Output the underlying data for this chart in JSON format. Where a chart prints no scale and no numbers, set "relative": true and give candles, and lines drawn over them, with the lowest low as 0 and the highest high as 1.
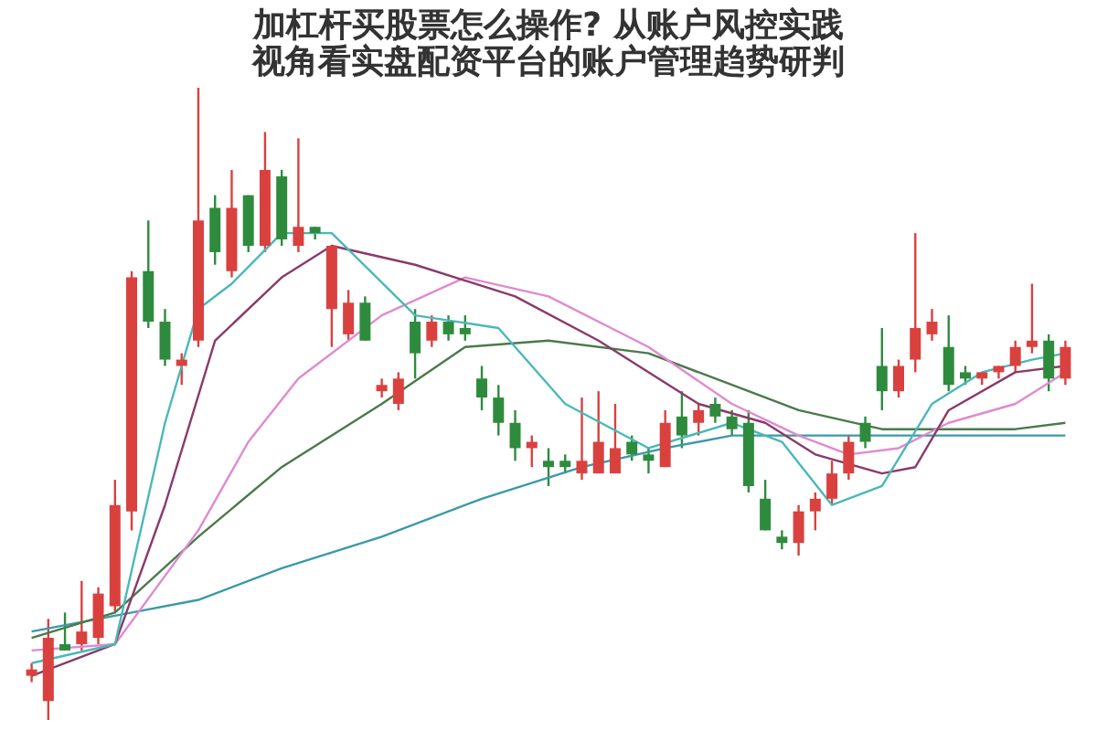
{
  "chart_data": {
    "type": "candlestick",
    "title": "加杠杆买股票怎么操作? 从账户风控实践视角看实盘配资平台的账户管理趋势研判",
    "relative": true,
    "marker": "none",
    "line_style": "solid",
    "categories": [
      null,
      null,
      null,
      null,
      null,
      null,
      null,
      null,
      null,
      null,
      null,
      null,
      null,
      null,
      null,
      null,
      null,
      null,
      null,
      null,
      null,
      null,
      null,
      null,
      null,
      null,
      null,
      null,
      null,
      null,
      null,
      null,
      null,
      null,
      null,
      null,
      null,
      null,
      null,
      null,
      null,
      null,
      null,
      null,
      null,
      null,
      null,
      null,
      null,
      null,
      null,
      null,
      null,
      null,
      null,
      null,
      null,
      null,
      null,
      null,
      null,
      null,
      null
    ],
    "ohlc": [
      [
        0.07,
        0.09,
        0.06,
        0.08
      ],
      [
        0.03,
        0.16,
        0.0,
        0.13
      ],
      [
        0.12,
        0.17,
        0.11,
        0.11
      ],
      [
        0.12,
        0.22,
        0.11,
        0.14
      ],
      [
        0.13,
        0.21,
        0.12,
        0.2
      ],
      [
        0.18,
        0.38,
        0.17,
        0.34
      ],
      [
        0.33,
        0.71,
        0.3,
        0.7
      ],
      [
        0.71,
        0.79,
        0.62,
        0.63
      ],
      [
        0.63,
        0.65,
        0.56,
        0.57
      ],
      [
        0.56,
        0.58,
        0.53,
        0.57
      ],
      [
        0.6,
        1.0,
        0.59,
        0.79
      ],
      [
        0.81,
        0.83,
        0.72,
        0.74
      ],
      [
        0.71,
        0.87,
        0.7,
        0.81
      ],
      [
        0.83,
        0.83,
        0.74,
        0.75
      ],
      [
        0.75,
        0.93,
        0.74,
        0.87
      ],
      [
        0.86,
        0.87,
        0.75,
        0.76
      ],
      [
        0.75,
        0.92,
        0.74,
        0.78
      ],
      [
        0.78,
        0.78,
        0.76,
        0.77
      ],
      [
        0.65,
        0.75,
        0.59,
        0.75
      ],
      [
        0.61,
        0.68,
        0.6,
        0.66
      ],
      [
        0.66,
        0.67,
        0.6,
        0.6
      ],
      [
        0.52,
        0.54,
        0.51,
        0.53
      ],
      [
        0.5,
        0.55,
        0.49,
        0.54
      ],
      [
        0.63,
        0.65,
        0.54,
        0.58
      ],
      [
        0.6,
        0.64,
        0.59,
        0.63
      ],
      [
        0.63,
        0.64,
        0.6,
        0.61
      ],
      [
        0.62,
        0.64,
        0.6,
        0.61
      ],
      [
        0.54,
        0.56,
        0.49,
        0.51
      ],
      [
        0.51,
        0.53,
        0.45,
        0.47
      ],
      [
        0.47,
        0.49,
        0.41,
        0.43
      ],
      [
        0.43,
        0.45,
        0.4,
        0.44
      ],
      [
        0.41,
        0.43,
        0.37,
        0.4
      ],
      [
        0.41,
        0.42,
        0.39,
        0.4
      ],
      [
        0.39,
        0.51,
        0.38,
        0.41
      ],
      [
        0.39,
        0.52,
        0.39,
        0.44
      ],
      [
        0.39,
        0.5,
        0.39,
        0.43
      ],
      [
        0.44,
        0.45,
        0.41,
        0.42
      ],
      [
        0.42,
        0.43,
        0.39,
        0.41
      ],
      [
        0.4,
        0.49,
        0.4,
        0.47
      ],
      [
        0.48,
        0.52,
        0.43,
        0.45
      ],
      [
        0.47,
        0.5,
        0.45,
        0.49
      ],
      [
        0.5,
        0.51,
        0.47,
        0.48
      ],
      [
        0.48,
        0.49,
        0.45,
        0.46
      ],
      [
        0.47,
        0.49,
        0.36,
        0.37
      ],
      [
        0.35,
        0.38,
        0.3,
        0.3
      ],
      [
        0.29,
        0.3,
        0.27,
        0.28
      ],
      [
        0.28,
        0.34,
        0.26,
        0.33
      ],
      [
        0.33,
        0.36,
        0.3,
        0.35
      ],
      [
        0.35,
        0.41,
        0.34,
        0.39
      ],
      [
        0.39,
        0.45,
        0.38,
        0.44
      ],
      [
        0.47,
        0.48,
        0.43,
        0.44
      ],
      [
        0.56,
        0.62,
        0.49,
        0.52
      ],
      [
        0.52,
        0.57,
        0.51,
        0.56
      ],
      [
        0.57,
        0.77,
        0.55,
        0.62
      ],
      [
        0.61,
        0.65,
        0.6,
        0.63
      ],
      [
        0.59,
        0.64,
        0.52,
        0.53
      ],
      [
        0.55,
        0.56,
        0.53,
        0.54
      ],
      [
        0.54,
        0.55,
        0.53,
        0.55
      ],
      [
        0.55,
        0.56,
        0.54,
        0.56
      ],
      [
        0.56,
        0.6,
        0.55,
        0.59
      ],
      [
        0.59,
        0.69,
        0.58,
        0.6
      ],
      [
        0.6,
        0.61,
        0.52,
        0.54
      ],
      [
        0.54,
        0.6,
        0.53,
        0.59
      ]
    ],
    "colors": [
      "#d9413f",
      "#d9413f",
      "#2e8b3e",
      "#d9413f",
      "#d9413f",
      "#d9413f",
      "#d9413f",
      "#2e8b3e",
      "#2e8b3e",
      "#d9413f",
      "#d9413f",
      "#2e8b3e",
      "#d9413f",
      "#2e8b3e",
      "#d9413f",
      "#2e8b3e",
      "#d9413f",
      "#2e8b3e",
      "#d9413f",
      "#d9413f",
      "#2e8b3e",
      "#d9413f",
      "#d9413f",
      "#2e8b3e",
      "#d9413f",
      "#2e8b3e",
      "#2e8b3e",
      "#2e8b3e",
      "#2e8b3e",
      "#2e8b3e",
      "#d9413f",
      "#2e8b3e",
      "#2e8b3e",
      "#d9413f",
      "#d9413f",
      "#d9413f",
      "#2e8b3e",
      "#2e8b3e",
      "#d9413f",
      "#2e8b3e",
      "#d9413f",
      "#2e8b3e",
      "#2e8b3e",
      "#2e8b3e",
      "#2e8b3e",
      "#2e8b3e",
      "#d9413f",
      "#d9413f",
      "#d9413f",
      "#d9413f",
      "#2e8b3e",
      "#2e8b3e",
      "#d9413f",
      "#d9413f",
      "#d9413f",
      "#2e8b3e",
      "#2e8b3e",
      "#d9413f",
      "#d9413f",
      "#d9413f",
      "#d9413f",
      "#2e8b3e",
      "#d9413f"
    ],
    "series": [
      {
        "type": "line",
        "color": "#3a9aa8",
        "values": [
          0.14,
          null,
          null,
          null,
          null,
          null,
          0.17,
          null,
          null,
          null,
          0.19,
          null,
          null,
          null,
          null,
          0.24,
          null,
          null,
          null,
          null,
          null,
          0.29,
          null,
          null,
          null,
          null,
          null,
          0.35,
          null,
          null,
          null,
          null,
          null,
          0.4,
          null,
          null,
          null,
          null,
          0.43,
          null,
          null,
          null,
          0.45,
          null,
          null,
          null,
          0.45,
          null,
          null,
          null,
          null,
          null,
          0.45,
          null,
          null,
          null,
          null,
          null,
          null,
          null,
          null,
          null,
          0.45
        ]
      },
      {
        "type": "line",
        "color": "#4a7a4a",
        "values": [
          0.13,
          null,
          null,
          null,
          null,
          0.17,
          null,
          null,
          null,
          null,
          0.29,
          null,
          null,
          null,
          null,
          0.4,
          null,
          null,
          null,
          null,
          null,
          0.5,
          null,
          null,
          null,
          null,
          0.59,
          null,
          null,
          null,
          null,
          0.6,
          null,
          null,
          null,
          null,
          null,
          0.58,
          null,
          null,
          null,
          null,
          0.53,
          null,
          null,
          null,
          0.49,
          null,
          null,
          null,
          null,
          0.46,
          null,
          null,
          null,
          0.46,
          null,
          null,
          null,
          0.46,
          null,
          null,
          0.47
        ]
      },
      {
        "type": "line",
        "color": "#e08ad0",
        "values": [
          0.11,
          null,
          null,
          null,
          null,
          0.12,
          null,
          null,
          null,
          null,
          0.3,
          null,
          null,
          0.44,
          null,
          null,
          0.54,
          null,
          null,
          null,
          null,
          0.64,
          null,
          null,
          null,
          null,
          0.7,
          null,
          null,
          null,
          null,
          0.67,
          null,
          null,
          null,
          null,
          null,
          0.59,
          null,
          null,
          null,
          null,
          0.5,
          null,
          null,
          null,
          0.45,
          null,
          null,
          0.42,
          null,
          null,
          0.43,
          null,
          null,
          0.47,
          null,
          null,
          null,
          0.5,
          null,
          null,
          0.55
        ]
      },
      {
        "type": "line",
        "color": "#8a3a6a",
        "values": [
          0.07,
          null,
          null,
          null,
          null,
          0.12,
          null,
          null,
          0.34,
          null,
          null,
          0.6,
          null,
          null,
          null,
          0.7,
          null,
          null,
          0.75,
          null,
          null,
          null,
          null,
          0.72,
          null,
          null,
          null,
          null,
          null,
          0.67,
          null,
          null,
          null,
          null,
          0.6,
          null,
          null,
          null,
          null,
          null,
          0.5,
          null,
          null,
          null,
          0.47,
          null,
          null,
          0.42,
          null,
          null,
          null,
          0.39,
          null,
          0.4,
          null,
          0.49,
          null,
          null,
          null,
          0.55,
          null,
          null,
          0.56
        ]
      },
      {
        "type": "line",
        "color": "#4ab8b8",
        "values": [
          0.09,
          null,
          null,
          null,
          null,
          0.12,
          null,
          null,
          0.47,
          null,
          0.65,
          null,
          0.69,
          null,
          null,
          0.77,
          null,
          null,
          0.77,
          null,
          null,
          null,
          null,
          0.64,
          null,
          null,
          null,
          null,
          0.62,
          null,
          null,
          null,
          0.5,
          null,
          null,
          null,
          null,
          0.43,
          null,
          null,
          null,
          null,
          0.47,
          null,
          null,
          0.44,
          null,
          null,
          0.34,
          null,
          null,
          0.37,
          null,
          null,
          0.5,
          null,
          null,
          0.55,
          null,
          null,
          0.57,
          null,
          0.58
        ]
      }
    ]
  }
}
